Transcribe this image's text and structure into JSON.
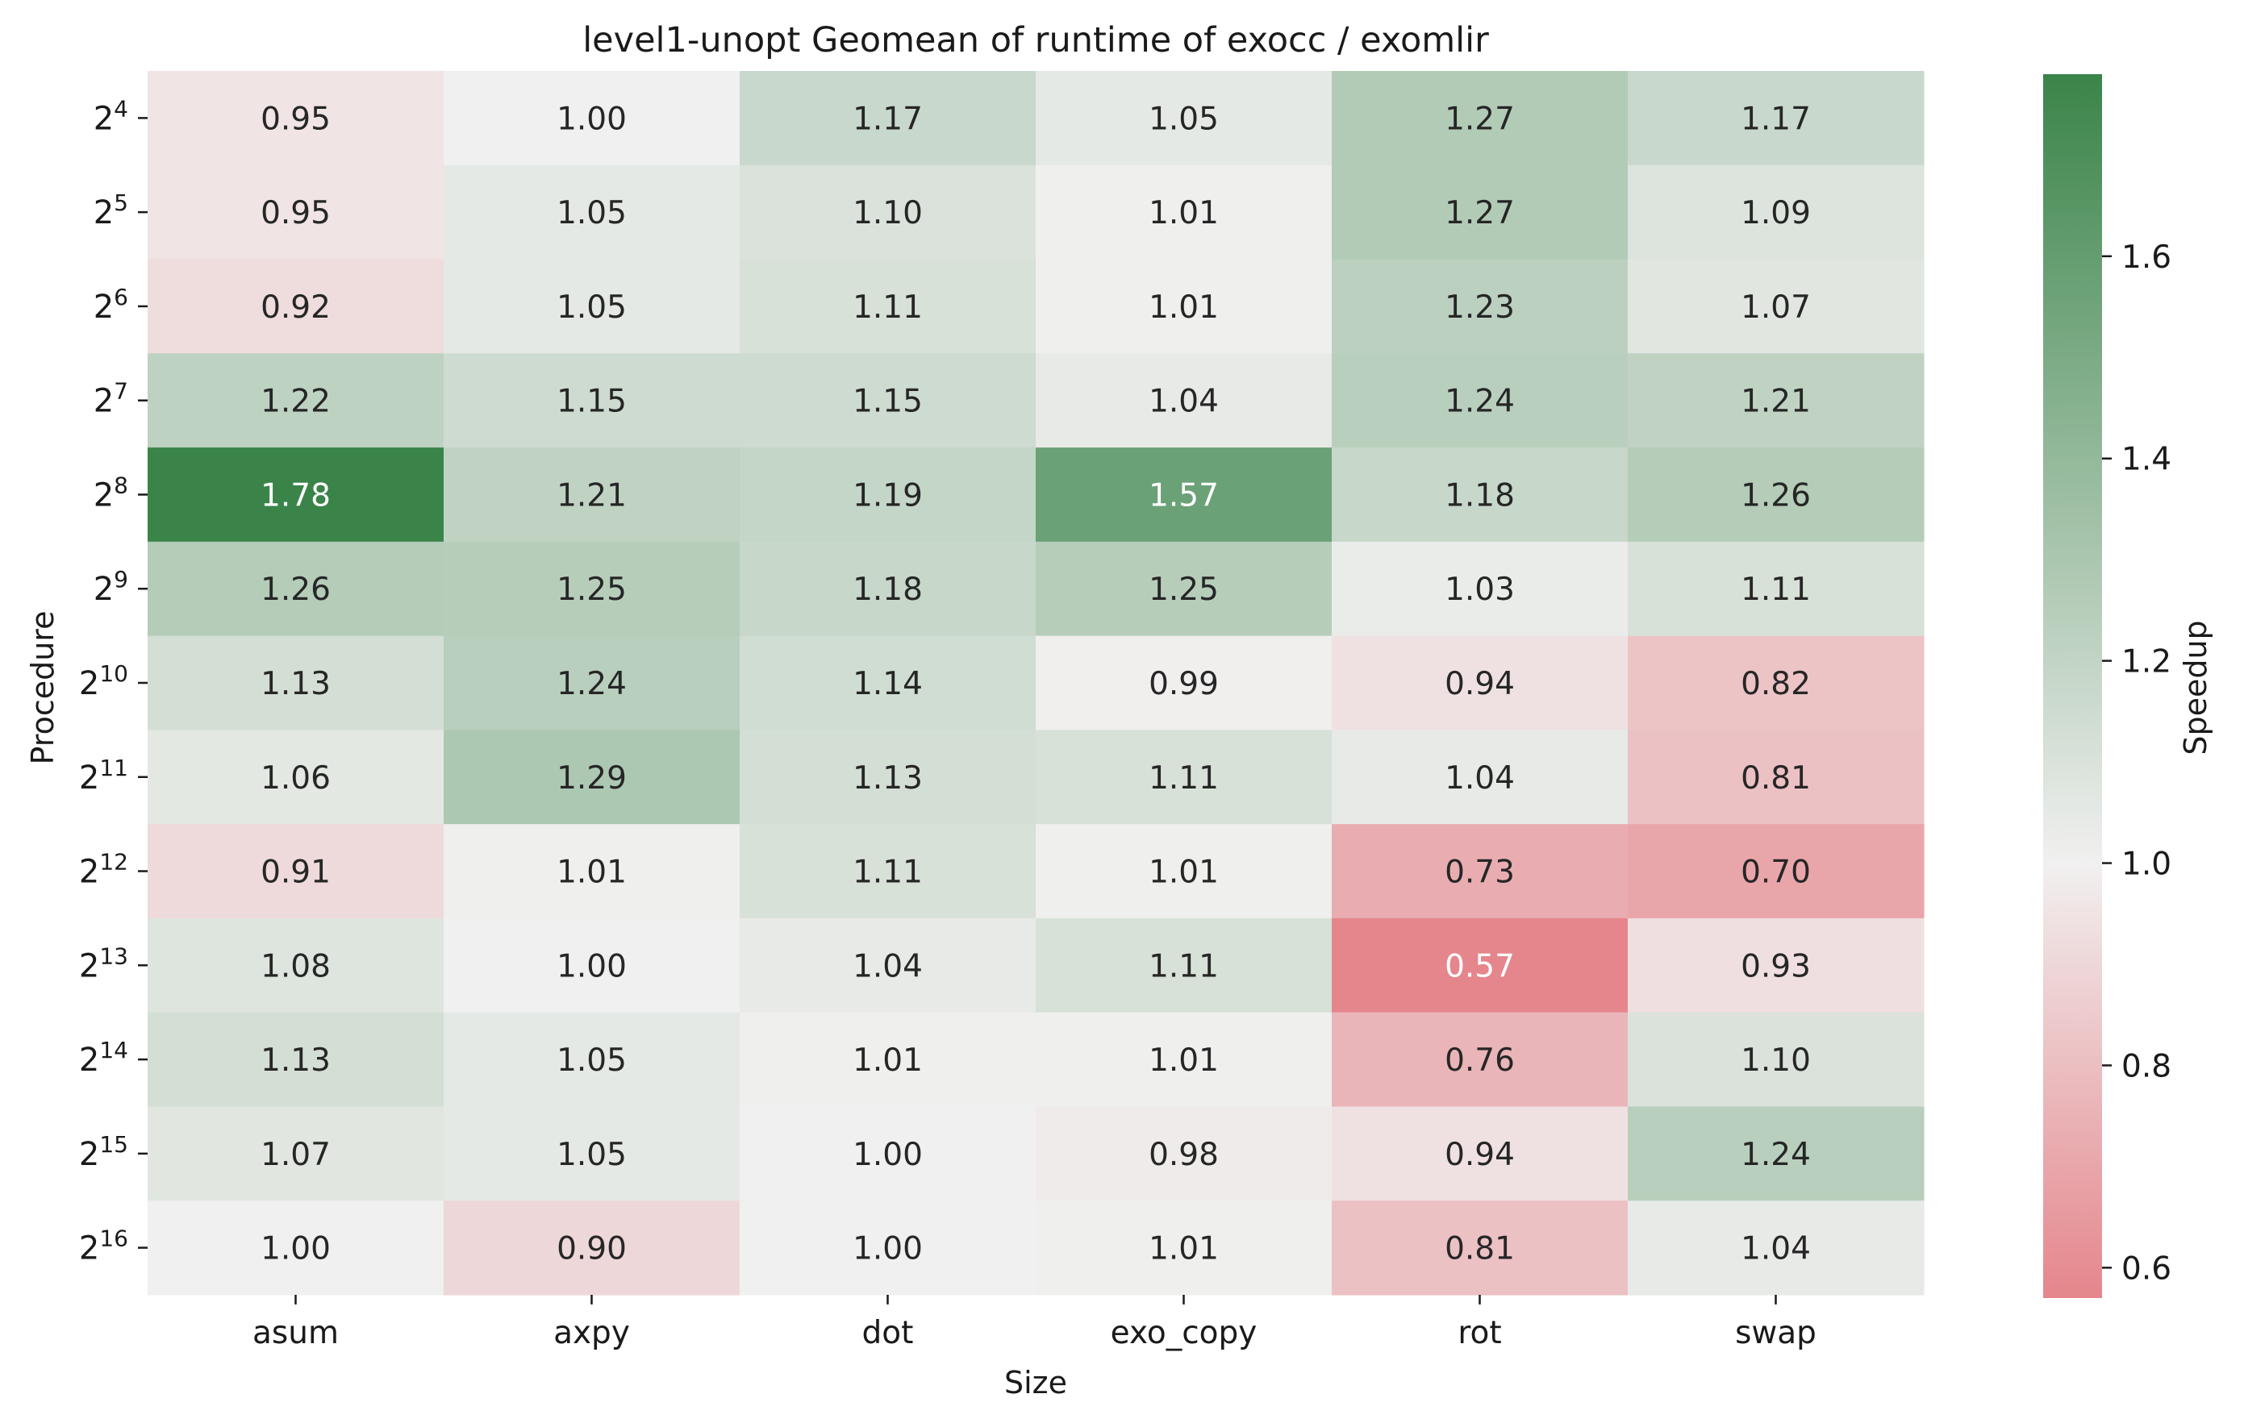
{
  "chart_data": {
    "type": "heatmap",
    "title": "level1-unopt Geomean of runtime of exocc / exomlir",
    "xlabel": "Size",
    "ylabel": "Procedure",
    "colorbar_label": "Speedup",
    "colorbar_ticks": [
      "0.6",
      "0.8",
      "1.0",
      "1.2",
      "1.4",
      "1.6"
    ],
    "colorbar_range": [
      0.57,
      1.78
    ],
    "columns": [
      "asum",
      "axpy",
      "dot",
      "exo_copy",
      "rot",
      "swap"
    ],
    "rows": [
      {
        "base": "2",
        "exp": "4"
      },
      {
        "base": "2",
        "exp": "5"
      },
      {
        "base": "2",
        "exp": "6"
      },
      {
        "base": "2",
        "exp": "7"
      },
      {
        "base": "2",
        "exp": "8"
      },
      {
        "base": "2",
        "exp": "9"
      },
      {
        "base": "2",
        "exp": "10"
      },
      {
        "base": "2",
        "exp": "11"
      },
      {
        "base": "2",
        "exp": "12"
      },
      {
        "base": "2",
        "exp": "13"
      },
      {
        "base": "2",
        "exp": "14"
      },
      {
        "base": "2",
        "exp": "15"
      },
      {
        "base": "2",
        "exp": "16"
      }
    ],
    "values": [
      [
        "0.95",
        "1.00",
        "1.17",
        "1.05",
        "1.27",
        "1.17"
      ],
      [
        "0.95",
        "1.05",
        "1.10",
        "1.01",
        "1.27",
        "1.09"
      ],
      [
        "0.92",
        "1.05",
        "1.11",
        "1.01",
        "1.23",
        "1.07"
      ],
      [
        "1.22",
        "1.15",
        "1.15",
        "1.04",
        "1.24",
        "1.21"
      ],
      [
        "1.78",
        "1.21",
        "1.19",
        "1.57",
        "1.18",
        "1.26"
      ],
      [
        "1.26",
        "1.25",
        "1.18",
        "1.25",
        "1.03",
        "1.11"
      ],
      [
        "1.13",
        "1.24",
        "1.14",
        "0.99",
        "0.94",
        "0.82"
      ],
      [
        "1.06",
        "1.29",
        "1.13",
        "1.11",
        "1.04",
        "0.81"
      ],
      [
        "0.91",
        "1.01",
        "1.11",
        "1.01",
        "0.73",
        "0.70"
      ],
      [
        "1.08",
        "1.00",
        "1.04",
        "1.11",
        "0.57",
        "0.93"
      ],
      [
        "1.13",
        "1.05",
        "1.01",
        "1.01",
        "0.76",
        "1.10"
      ],
      [
        "1.07",
        "1.05",
        "1.00",
        "0.98",
        "0.94",
        "1.24"
      ],
      [
        "1.00",
        "0.90",
        "1.00",
        "1.01",
        "0.81",
        "1.04"
      ]
    ],
    "colormap": {
      "low": "#e5868c",
      "mid": "#f1f0f0",
      "high": "#3a8449"
    }
  }
}
